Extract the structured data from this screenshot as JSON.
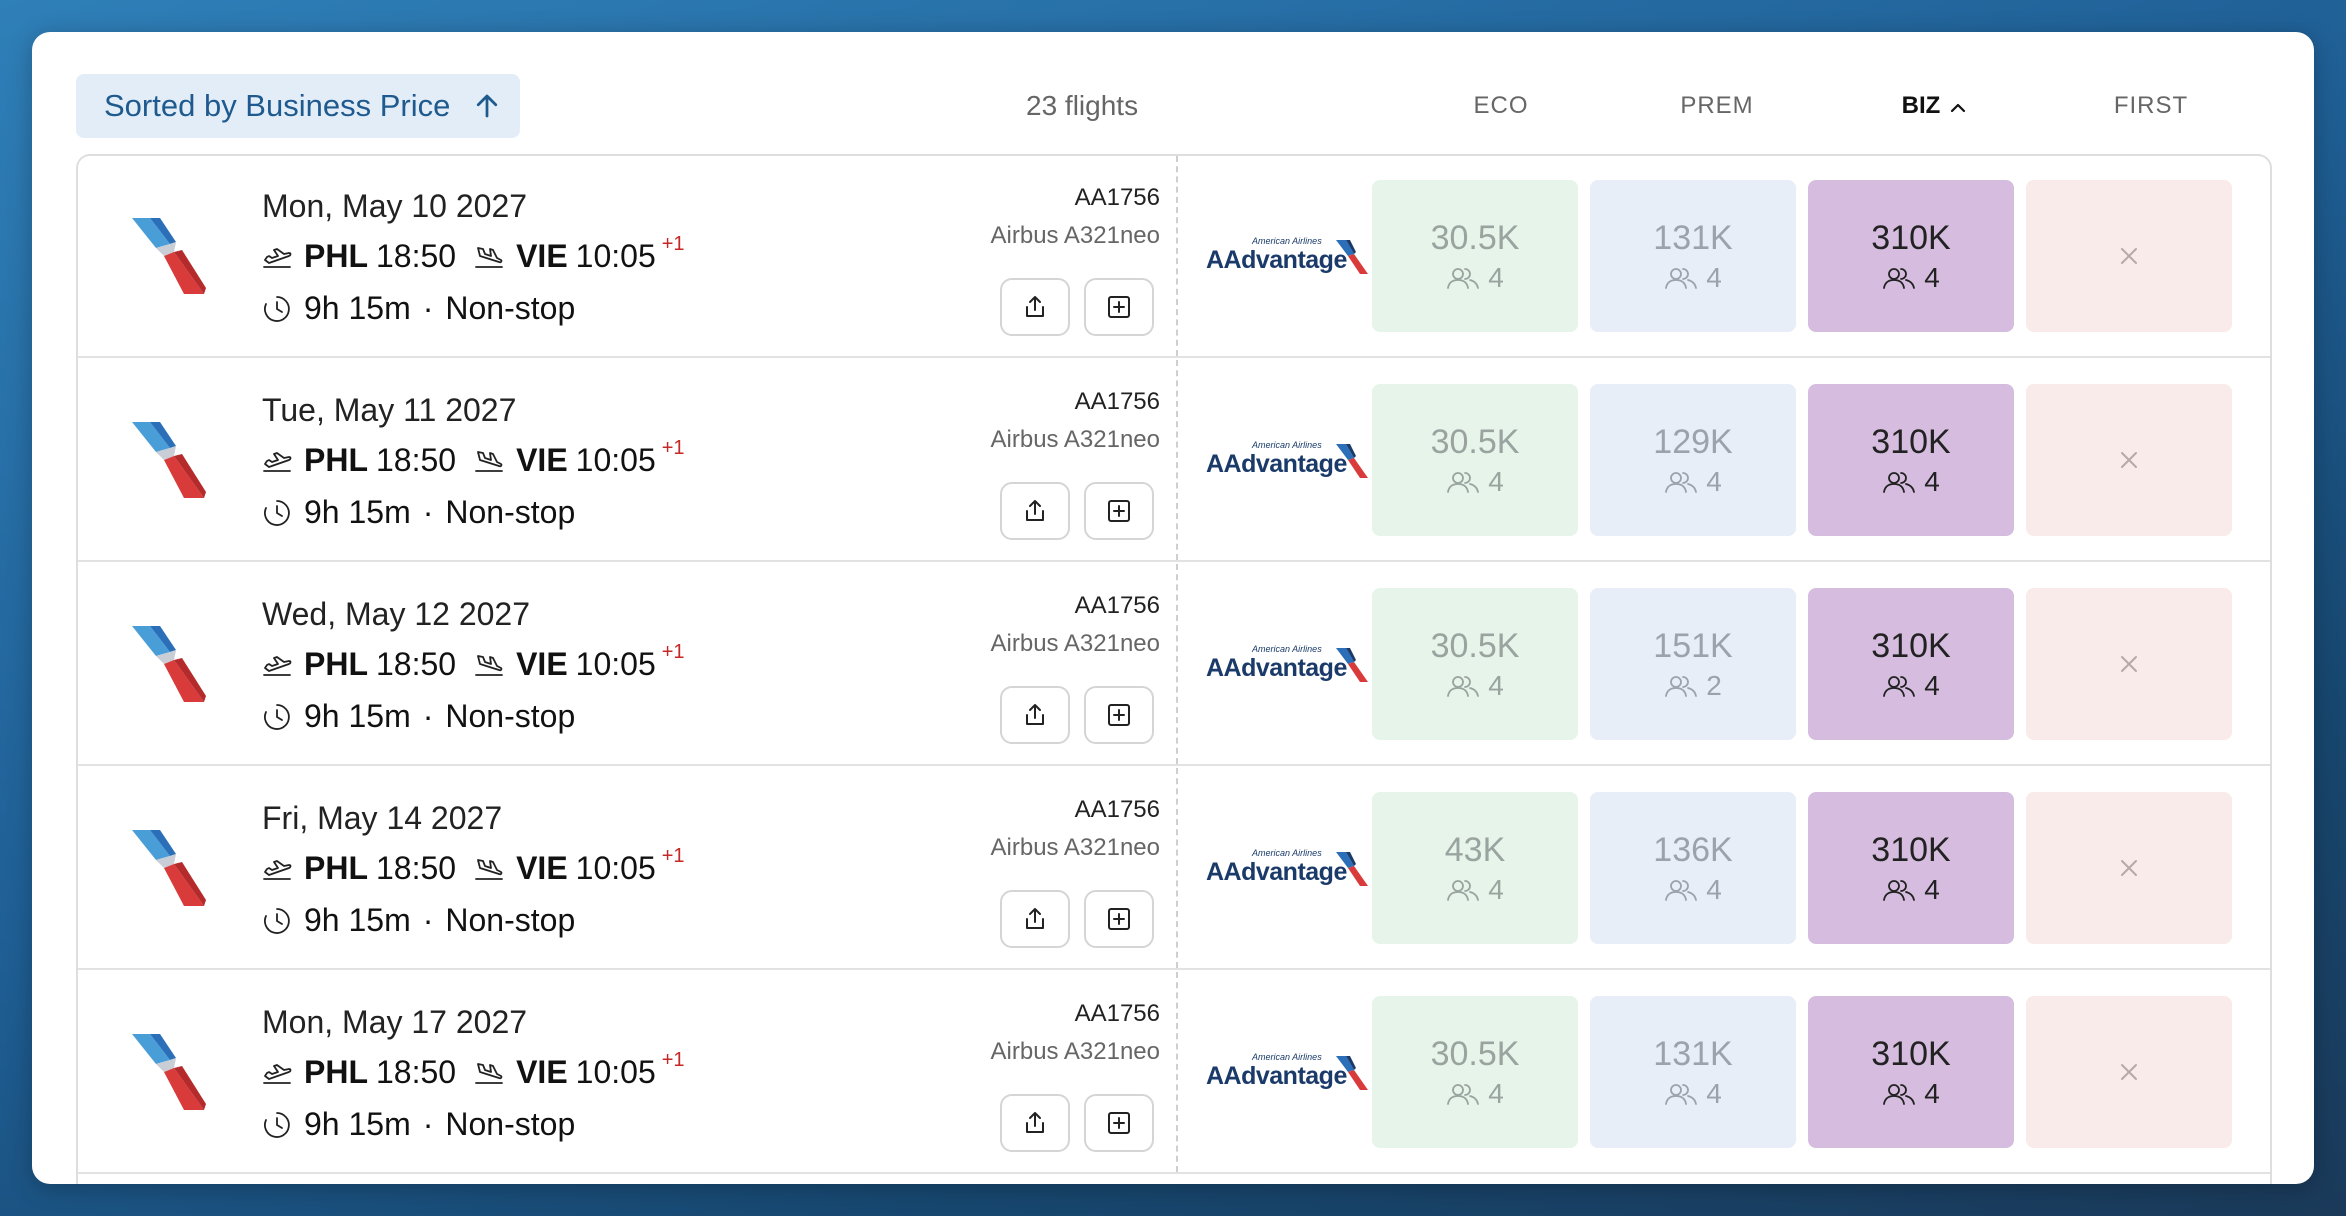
{
  "header": {
    "sort_label": "Sorted by Business Price",
    "flight_count": "23 flights",
    "columns": [
      {
        "label": "ECO",
        "active": false
      },
      {
        "label": "PREM",
        "active": false
      },
      {
        "label": "BIZ",
        "active": true
      },
      {
        "label": "FIRST",
        "active": false
      }
    ]
  },
  "colors": {
    "accent": "#1f5a8f",
    "eco_bg": "#e6f4ea",
    "prem_bg": "#e7eef7",
    "biz_bg": "#d6bde0",
    "first_bg": "#f8ebea",
    "plus_day": "#c62828"
  },
  "program": {
    "small": "American Airlines",
    "big": "AAdvantage"
  },
  "flights": [
    {
      "date": "Mon, May 10 2027",
      "origin": "PHL",
      "dep": "18:50",
      "dest": "VIE",
      "arr": "10:05",
      "plus": "+1",
      "duration": "9h 15m",
      "stops": "Non-stop",
      "flight_no": "AA1756",
      "aircraft": "Airbus A321neo",
      "eco": {
        "price": "30.5K",
        "seats": "4"
      },
      "prem": {
        "price": "131K",
        "seats": "4"
      },
      "biz": {
        "price": "310K",
        "seats": "4"
      }
    },
    {
      "date": "Tue, May 11 2027",
      "origin": "PHL",
      "dep": "18:50",
      "dest": "VIE",
      "arr": "10:05",
      "plus": "+1",
      "duration": "9h 15m",
      "stops": "Non-stop",
      "flight_no": "AA1756",
      "aircraft": "Airbus A321neo",
      "eco": {
        "price": "30.5K",
        "seats": "4"
      },
      "prem": {
        "price": "129K",
        "seats": "4"
      },
      "biz": {
        "price": "310K",
        "seats": "4"
      }
    },
    {
      "date": "Wed, May 12 2027",
      "origin": "PHL",
      "dep": "18:50",
      "dest": "VIE",
      "arr": "10:05",
      "plus": "+1",
      "duration": "9h 15m",
      "stops": "Non-stop",
      "flight_no": "AA1756",
      "aircraft": "Airbus A321neo",
      "eco": {
        "price": "30.5K",
        "seats": "4"
      },
      "prem": {
        "price": "151K",
        "seats": "2"
      },
      "biz": {
        "price": "310K",
        "seats": "4"
      }
    },
    {
      "date": "Fri, May 14 2027",
      "origin": "PHL",
      "dep": "18:50",
      "dest": "VIE",
      "arr": "10:05",
      "plus": "+1",
      "duration": "9h 15m",
      "stops": "Non-stop",
      "flight_no": "AA1756",
      "aircraft": "Airbus A321neo",
      "eco": {
        "price": "43K",
        "seats": "4"
      },
      "prem": {
        "price": "136K",
        "seats": "4"
      },
      "biz": {
        "price": "310K",
        "seats": "4"
      }
    },
    {
      "date": "Mon, May 17 2027",
      "origin": "PHL",
      "dep": "18:50",
      "dest": "VIE",
      "arr": "10:05",
      "plus": "+1",
      "duration": "9h 15m",
      "stops": "Non-stop",
      "flight_no": "AA1756",
      "aircraft": "Airbus A321neo",
      "eco": {
        "price": "30.5K",
        "seats": "4"
      },
      "prem": {
        "price": "131K",
        "seats": "4"
      },
      "biz": {
        "price": "310K",
        "seats": "4"
      }
    }
  ]
}
